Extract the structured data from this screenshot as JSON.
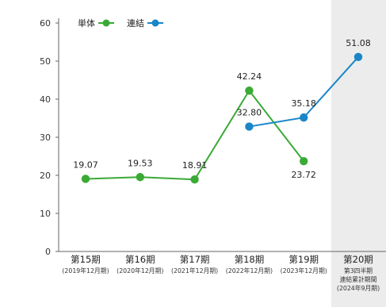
{
  "chart_data": {
    "type": "line",
    "categories": [
      {
        "main": "第15期",
        "sub": [
          "(2019年12月期)"
        ]
      },
      {
        "main": "第16期",
        "sub": [
          "(2020年12月期)"
        ]
      },
      {
        "main": "第17期",
        "sub": [
          "(2021年12月期)"
        ]
      },
      {
        "main": "第18期",
        "sub": [
          "(2022年12月期)"
        ]
      },
      {
        "main": "第19期",
        "sub": [
          "(2023年12月期)"
        ]
      },
      {
        "main": "第20期",
        "sub": [
          "第3四半期",
          "連結累計期間",
          "(2024年9月期)"
        ]
      }
    ],
    "series": [
      {
        "name": "単体",
        "color": "#3aaa35",
        "values": [
          19.07,
          19.53,
          18.91,
          42.24,
          23.72,
          null
        ],
        "labels": [
          "19.07",
          "19.53",
          "18.91",
          "42.24",
          "23.72",
          null
        ]
      },
      {
        "name": "連結",
        "color": "#1a86c8",
        "values": [
          null,
          null,
          null,
          32.8,
          35.18,
          51.08
        ],
        "labels": [
          null,
          null,
          null,
          "32.80",
          "35.18",
          "51.08"
        ]
      }
    ],
    "yticks": [
      0,
      10,
      20,
      30,
      40,
      50,
      60
    ],
    "ylim": [
      0,
      60
    ],
    "highlight_category": 5,
    "highlight_color": "#ececec",
    "legend_position": "top-left"
  }
}
